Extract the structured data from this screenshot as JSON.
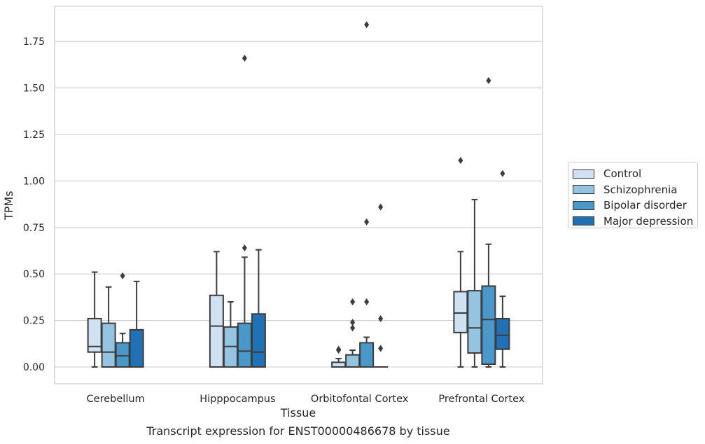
{
  "chart_data": {
    "type": "box",
    "title": "Transcript expression for ENST00000486678 by tissue",
    "xlabel": "Tissue",
    "ylabel": "TPMs",
    "ylim": [
      -0.09,
      1.95
    ],
    "yticks": [
      "0.00",
      "0.25",
      "0.50",
      "0.75",
      "1.00",
      "1.25",
      "1.50",
      "1.75"
    ],
    "grid": "horizontal",
    "legend_position": "right",
    "categories": [
      "Cerebellum",
      "Hipppocampus",
      "Orbitofontal Cortex",
      "Prefrontal Cortex"
    ],
    "series": [
      {
        "name": "Control",
        "color": "#d0e1f2",
        "boxes": [
          {
            "whisker_low": 0.0,
            "q1": 0.08,
            "median": 0.11,
            "q3": 0.26,
            "whisker_high": 0.51,
            "outliers": []
          },
          {
            "whisker_low": 0.0,
            "q1": 0.0,
            "median": 0.22,
            "q3": 0.385,
            "whisker_high": 0.62,
            "outliers": []
          },
          {
            "whisker_low": 0.0,
            "q1": 0.0,
            "median": 0.0,
            "q3": 0.025,
            "whisker_high": 0.045,
            "outliers": [
              0.09,
              0.095
            ]
          },
          {
            "whisker_low": 0.0,
            "q1": 0.185,
            "median": 0.29,
            "q3": 0.405,
            "whisker_high": 0.62,
            "outliers": [
              1.11
            ]
          }
        ]
      },
      {
        "name": "Schizophrenia",
        "color": "#94c4df",
        "boxes": [
          {
            "whisker_low": 0.0,
            "q1": 0.0,
            "median": 0.08,
            "q3": 0.235,
            "whisker_high": 0.43,
            "outliers": []
          },
          {
            "whisker_low": 0.0,
            "q1": 0.0,
            "median": 0.11,
            "q3": 0.215,
            "whisker_high": 0.35,
            "outliers": []
          },
          {
            "whisker_low": 0.0,
            "q1": 0.0,
            "median": 0.0,
            "q3": 0.065,
            "whisker_high": 0.09,
            "outliers": [
              0.21,
              0.24,
              0.35
            ]
          },
          {
            "whisker_low": 0.0,
            "q1": 0.075,
            "median": 0.21,
            "q3": 0.41,
            "whisker_high": 0.9,
            "outliers": []
          }
        ]
      },
      {
        "name": "Bipolar disorder",
        "color": "#4a98c9",
        "boxes": [
          {
            "whisker_low": 0.0,
            "q1": 0.0,
            "median": 0.06,
            "q3": 0.13,
            "whisker_high": 0.18,
            "outliers": [
              0.49
            ]
          },
          {
            "whisker_low": 0.0,
            "q1": 0.0,
            "median": 0.085,
            "q3": 0.235,
            "whisker_high": 0.59,
            "outliers": [
              0.64,
              1.66
            ]
          },
          {
            "whisker_low": 0.0,
            "q1": 0.0,
            "median": 0.0,
            "q3": 0.13,
            "whisker_high": 0.16,
            "outliers": [
              0.35,
              0.78,
              1.84
            ]
          },
          {
            "whisker_low": 0.0,
            "q1": 0.015,
            "median": 0.255,
            "q3": 0.435,
            "whisker_high": 0.66,
            "outliers": [
              1.54
            ]
          }
        ]
      },
      {
        "name": "Major depression",
        "color": "#2171b5",
        "boxes": [
          {
            "whisker_low": 0.0,
            "q1": 0.0,
            "median": 0.0,
            "q3": 0.2,
            "whisker_high": 0.46,
            "outliers": []
          },
          {
            "whisker_low": 0.0,
            "q1": 0.0,
            "median": 0.08,
            "q3": 0.285,
            "whisker_high": 0.63,
            "outliers": []
          },
          {
            "whisker_low": 0.0,
            "q1": 0.0,
            "median": 0.0,
            "q3": 0.0,
            "whisker_high": 0.0,
            "outliers": [
              0.1,
              0.26,
              0.86
            ]
          },
          {
            "whisker_low": 0.0,
            "q1": 0.095,
            "median": 0.17,
            "q3": 0.26,
            "whisker_high": 0.38,
            "outliers": [
              1.04
            ]
          }
        ]
      }
    ]
  }
}
